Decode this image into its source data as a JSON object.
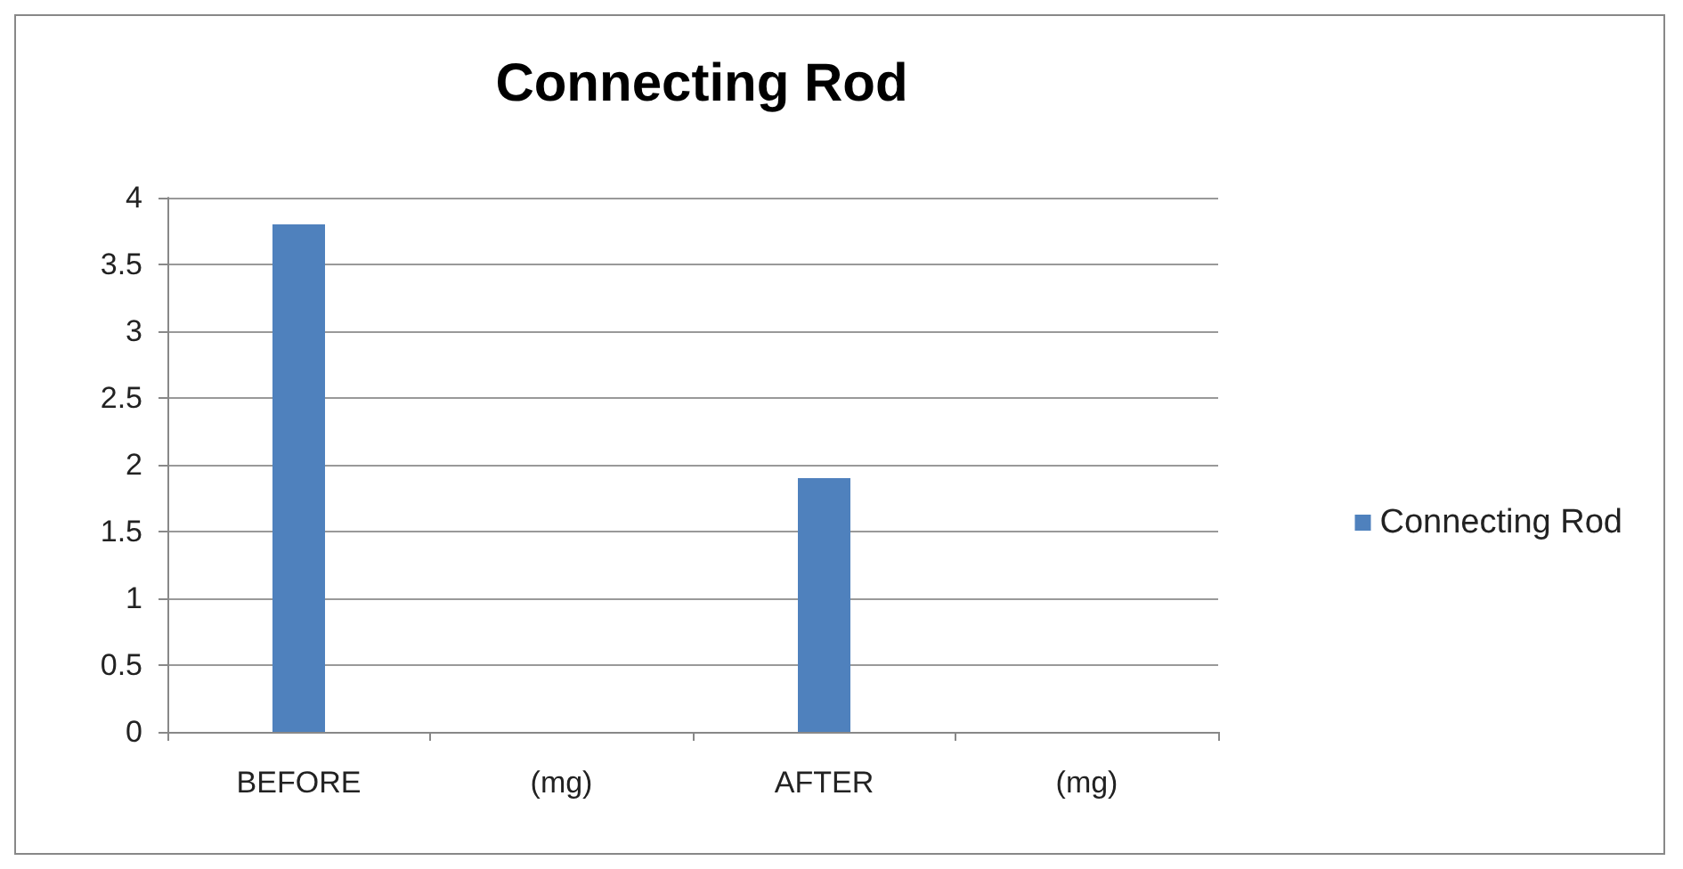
{
  "chart_data": {
    "type": "bar",
    "title": "Connecting Rod",
    "categories": [
      "BEFORE",
      "(mg)",
      "AFTER",
      "(mg)"
    ],
    "series": [
      {
        "name": "Connecting Rod",
        "color": "#4f81bd",
        "values": [
          3.8,
          null,
          1.9,
          null
        ]
      }
    ],
    "ylim": [
      0,
      4
    ],
    "yticks": [
      0,
      0.5,
      1,
      1.5,
      2,
      2.5,
      3,
      3.5,
      4
    ],
    "grid": "y",
    "legend": "right"
  }
}
